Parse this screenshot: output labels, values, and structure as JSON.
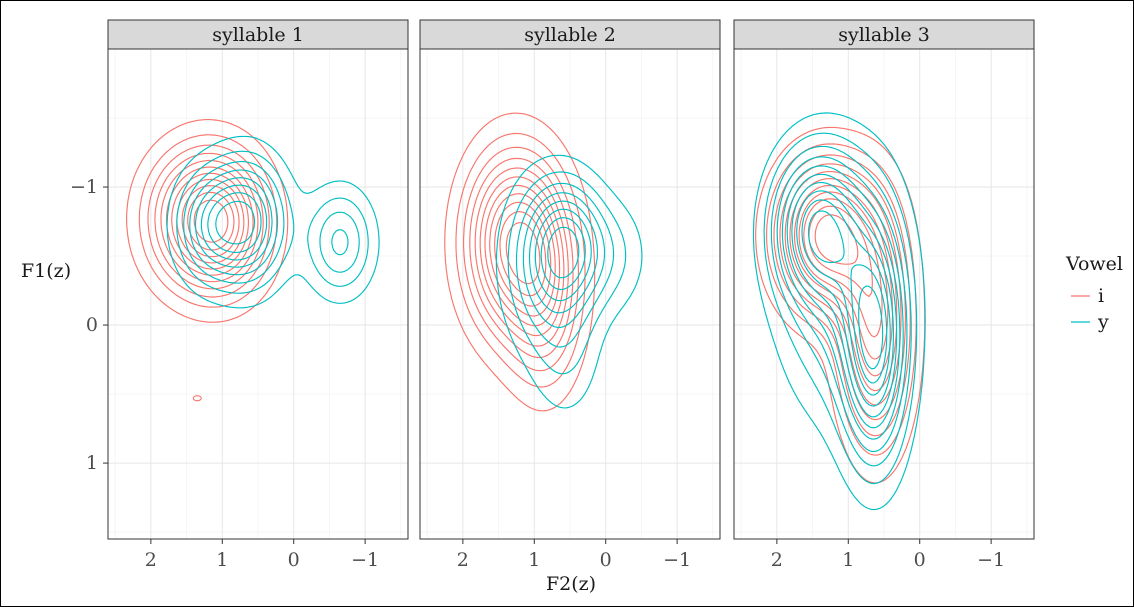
{
  "chart_data": {
    "type": "density-contour",
    "facet_labels": [
      "syllable 1",
      "syllable 2",
      "syllable 3"
    ],
    "xlabel": "F2(z)",
    "ylabel": "F1(z)",
    "x_axis": {
      "reversed": true,
      "range": [
        2.6,
        -1.6
      ],
      "ticks": [
        2,
        1,
        0,
        -1
      ],
      "tick_labels": [
        "2",
        "1",
        "0",
        "−1"
      ]
    },
    "y_axis": {
      "reversed": true,
      "range": [
        -2.0,
        1.55
      ],
      "ticks": [
        -1,
        0,
        1
      ],
      "tick_labels": [
        "−1",
        "0",
        "1"
      ]
    },
    "grid": true,
    "legend": {
      "title": "Vowel",
      "position": "right",
      "entries": [
        {
          "label": "i",
          "color": "#F8766D"
        },
        {
          "label": "y",
          "color": "#00BFC4"
        }
      ]
    },
    "facets": [
      {
        "label": "syllable 1",
        "series": [
          {
            "name": "i",
            "color": "#F8766D",
            "levels": 11,
            "peaks": [
              {
                "x": 1.3,
                "y": -0.77,
                "sx": 0.5,
                "sy": 0.33,
                "w": 1.0
              },
              {
                "x": 0.95,
                "y": -0.72,
                "sx": 0.42,
                "sy": 0.32,
                "w": 0.55
              }
            ],
            "outliers": [
              {
                "x": 1.35,
                "y": 0.53
              }
            ]
          },
          {
            "name": "y",
            "color": "#00BFC4",
            "levels": 8,
            "peaks": [
              {
                "x": 0.65,
                "y": -0.75,
                "sx": 0.36,
                "sy": 0.3,
                "w": 1.0
              },
              {
                "x": 1.2,
                "y": -0.72,
                "sx": 0.32,
                "sy": 0.27,
                "w": 0.6
              },
              {
                "x": -0.65,
                "y": -0.6,
                "sx": 0.32,
                "sy": 0.26,
                "w": 0.55
              }
            ]
          }
        ]
      },
      {
        "label": "syllable 2",
        "series": [
          {
            "name": "i",
            "color": "#F8766D",
            "levels": 11,
            "peaks": [
              {
                "x": 1.28,
                "y": -0.6,
                "sx": 0.45,
                "sy": 0.43,
                "w": 1.0
              },
              {
                "x": 0.85,
                "y": -0.2,
                "sx": 0.35,
                "sy": 0.45,
                "w": 0.45
              }
            ]
          },
          {
            "name": "y",
            "color": "#00BFC4",
            "levels": 8,
            "peaks": [
              {
                "x": 0.52,
                "y": -0.58,
                "sx": 0.33,
                "sy": 0.3,
                "w": 1.0
              },
              {
                "x": 0.9,
                "y": -0.45,
                "sx": 0.38,
                "sy": 0.4,
                "w": 0.6
              },
              {
                "x": 0.55,
                "y": 0.15,
                "sx": 0.35,
                "sy": 0.38,
                "w": 0.3
              },
              {
                "x": -0.1,
                "y": -0.5,
                "sx": 0.35,
                "sy": 0.28,
                "w": 0.3
              }
            ]
          }
        ]
      },
      {
        "label": "syllable 3",
        "series": [
          {
            "name": "i",
            "color": "#F8766D",
            "levels": 11,
            "peaks": [
              {
                "x": 1.3,
                "y": -0.65,
                "sx": 0.45,
                "sy": 0.35,
                "w": 1.0
              },
              {
                "x": 0.62,
                "y": 0.0,
                "sx": 0.33,
                "sy": 0.55,
                "w": 0.75
              }
            ]
          },
          {
            "name": "y",
            "color": "#00BFC4",
            "levels": 11,
            "peaks": [
              {
                "x": 1.45,
                "y": -0.72,
                "sx": 0.4,
                "sy": 0.35,
                "w": 0.8
              },
              {
                "x": 0.63,
                "y": 0.15,
                "sx": 0.3,
                "sy": 0.55,
                "w": 1.0
              },
              {
                "x": 1.1,
                "y": -0.3,
                "sx": 0.55,
                "sy": 0.6,
                "w": 0.5
              }
            ]
          }
        ]
      }
    ]
  }
}
